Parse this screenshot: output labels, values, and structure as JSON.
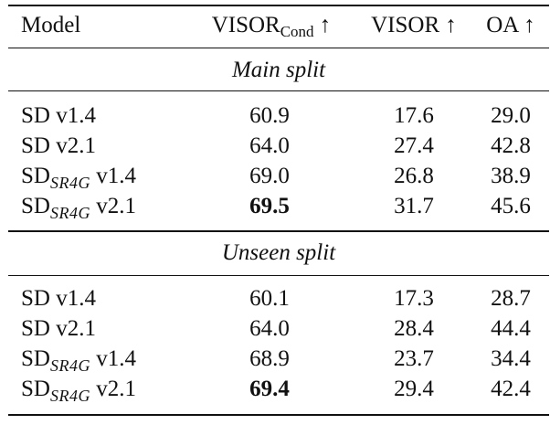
{
  "header": {
    "model": "Model",
    "visor_cond_main": "VISOR",
    "visor_cond_sub": "Cond",
    "arrow": "↑",
    "visor": "VISOR ↑",
    "oa": "OA ↑"
  },
  "sections": [
    {
      "title": "Main split",
      "rows": [
        {
          "model_base": "SD",
          "model_sub": "",
          "model_version": " v1.4",
          "visor_cond": "60.9",
          "visor": "17.6",
          "oa": "29.0",
          "bold": false
        },
        {
          "model_base": "SD",
          "model_sub": "",
          "model_version": " v2.1",
          "visor_cond": "64.0",
          "visor": "27.4",
          "oa": "42.8",
          "bold": false
        },
        {
          "model_base": "SD",
          "model_sub": "SR4G",
          "model_version": " v1.4",
          "visor_cond": "69.0",
          "visor": "26.8",
          "oa": "38.9",
          "bold": false
        },
        {
          "model_base": "SD",
          "model_sub": "SR4G",
          "model_version": " v2.1",
          "visor_cond": "69.5",
          "visor": "31.7",
          "oa": "45.6",
          "bold": true
        }
      ]
    },
    {
      "title": "Unseen split",
      "rows": [
        {
          "model_base": "SD",
          "model_sub": "",
          "model_version": " v1.4",
          "visor_cond": "60.1",
          "visor": "17.3",
          "oa": "28.7",
          "bold": false
        },
        {
          "model_base": "SD",
          "model_sub": "",
          "model_version": " v2.1",
          "visor_cond": "64.0",
          "visor": "28.4",
          "oa": "44.4",
          "bold": false
        },
        {
          "model_base": "SD",
          "model_sub": "SR4G",
          "model_version": " v1.4",
          "visor_cond": "68.9",
          "visor": "23.7",
          "oa": "34.4",
          "bold": false
        },
        {
          "model_base": "SD",
          "model_sub": "SR4G",
          "model_version": " v2.1",
          "visor_cond": "69.4",
          "visor": "29.4",
          "oa": "42.4",
          "bold": true
        }
      ]
    }
  ]
}
